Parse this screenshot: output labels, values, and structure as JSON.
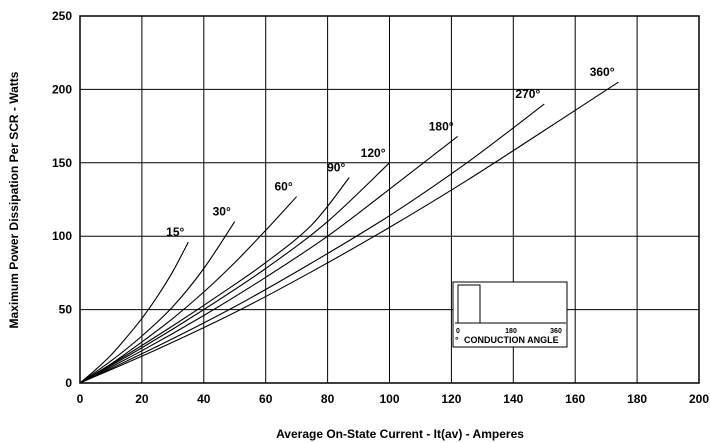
{
  "chart_data": {
    "type": "line",
    "title": "",
    "xlabel": "Average On-State Current - It(av) - Amperes",
    "ylabel": "Maximum Power Dissipation Per SCR - Watts",
    "xlim": [
      0,
      200
    ],
    "ylim": [
      0,
      250
    ],
    "xticks": [
      "0",
      "20",
      "40",
      "60",
      "80",
      "100",
      "120",
      "140",
      "160",
      "180",
      "200"
    ],
    "yticks": [
      "0",
      "50",
      "100",
      "150",
      "200",
      "250"
    ],
    "grid": true,
    "series": [
      {
        "name": "15°",
        "x": [
          0,
          5,
          10,
          15,
          20,
          25,
          30,
          35
        ],
        "y": [
          0,
          9,
          19,
          31,
          44,
          59,
          76,
          96
        ]
      },
      {
        "name": "30°",
        "x": [
          0,
          10,
          20,
          30,
          40,
          50
        ],
        "y": [
          0,
          15,
          32,
          52,
          78,
          110
        ]
      },
      {
        "name": "60°",
        "x": [
          0,
          10,
          20,
          30,
          40,
          50,
          60,
          70
        ],
        "y": [
          0,
          13,
          28,
          44,
          62,
          82,
          104,
          127
        ]
      },
      {
        "name": "90°",
        "x": [
          0,
          15,
          30,
          45,
          60,
          75,
          87
        ],
        "y": [
          0,
          19,
          39,
          60,
          82,
          108,
          140
        ]
      },
      {
        "name": "120°",
        "x": [
          0,
          20,
          40,
          60,
          80,
          100
        ],
        "y": [
          0,
          24,
          50,
          78,
          110,
          150
        ]
      },
      {
        "name": "180°",
        "x": [
          0,
          20,
          40,
          60,
          80,
          100,
          122
        ],
        "y": [
          0,
          22,
          46,
          72,
          100,
          132,
          168
        ]
      },
      {
        "name": "270°",
        "x": [
          0,
          25,
          50,
          75,
          100,
          125,
          150
        ],
        "y": [
          0,
          25,
          52,
          82,
          114,
          150,
          190
        ]
      },
      {
        "name": "360°",
        "x": [
          0,
          25,
          50,
          75,
          100,
          125,
          150,
          174
        ],
        "y": [
          0,
          23,
          48,
          76,
          106,
          138,
          172,
          205
        ]
      }
    ],
    "annotations": [
      "15°",
      "30°",
      "60°",
      "90°",
      "120°",
      "180°",
      "270°",
      "360°"
    ],
    "inset": {
      "ticks": [
        "0",
        "180",
        "360"
      ],
      "degree_mark": "°",
      "title": "CONDUCTION ANGLE"
    },
    "colors": {
      "line": "#000000",
      "grid": "#000000",
      "background": "#ffffff"
    }
  }
}
